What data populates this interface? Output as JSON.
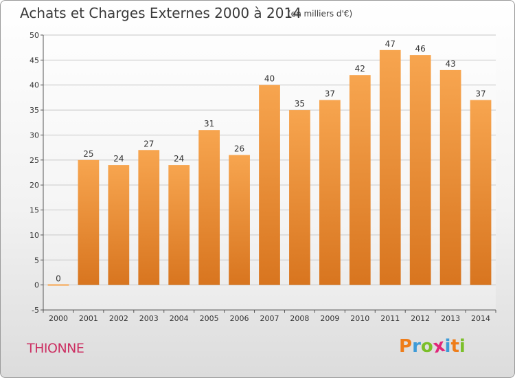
{
  "header": {
    "title": "Achats et Charges Externes 2000 à 2014",
    "unit": "(en milliers d'€)"
  },
  "footer": {
    "commune": "THIONNE",
    "logo_letters": [
      "P",
      "r",
      "o",
      "x",
      "i",
      "t",
      "i"
    ]
  },
  "colors": {
    "bar_light": "#f7a54f",
    "bar_dark": "#d8751f",
    "commune_text": "#cc2f62",
    "logo": [
      "#ee7d1a",
      "#3e9bd7",
      "#7bbf2a",
      "#e0267a",
      "#3e9bd7",
      "#ee7d1a",
      "#7bbf2a"
    ]
  },
  "chart_data": {
    "type": "bar",
    "title": "Achats et Charges Externes 2000 à 2014",
    "subtitle": "(en milliers d'€)",
    "categories": [
      "2000",
      "2001",
      "2002",
      "2003",
      "2004",
      "2005",
      "2006",
      "2007",
      "2008",
      "2009",
      "2010",
      "2011",
      "2012",
      "2013",
      "2014"
    ],
    "values": [
      0,
      25,
      24,
      27,
      24,
      31,
      26,
      40,
      35,
      37,
      42,
      47,
      46,
      43,
      37
    ],
    "data_labels": [
      "0",
      "25",
      "24",
      "27",
      "24",
      "31",
      "26",
      "40",
      "35",
      "37",
      "42",
      "47",
      "46",
      "43",
      "37"
    ],
    "ylim": [
      -5,
      50
    ],
    "yticks": [
      "-5",
      "0",
      "5",
      "10",
      "15",
      "20",
      "25",
      "30",
      "35",
      "40",
      "45",
      "50"
    ],
    "grid": true,
    "legend": "none"
  }
}
